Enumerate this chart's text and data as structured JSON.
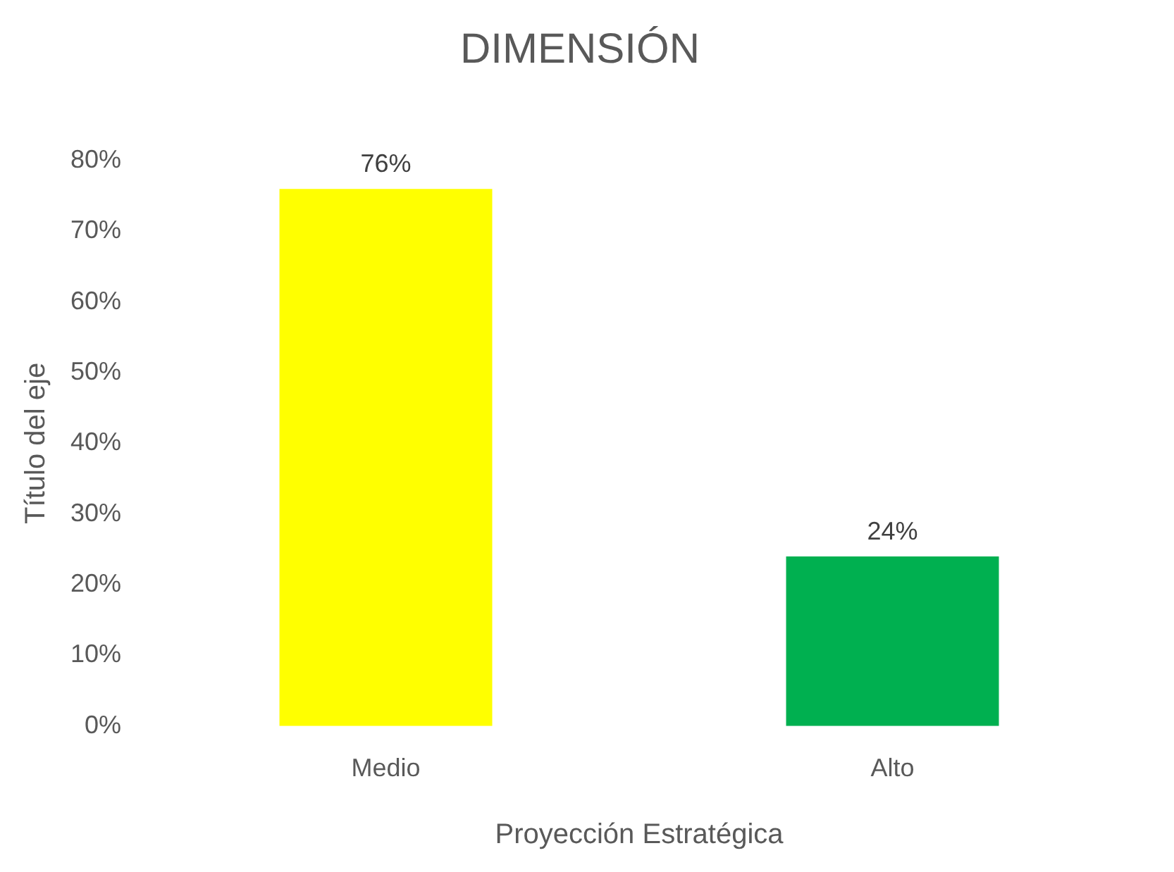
{
  "chart_data": {
    "type": "bar",
    "title": "DIMENSIÓN",
    "xlabel": "Proyección Estratégica",
    "ylabel": "Título del eje",
    "categories": [
      "Medio",
      "Alto"
    ],
    "values": [
      76,
      24
    ],
    "colors": [
      "#ffff00",
      "#00b050"
    ],
    "value_labels": [
      "76%",
      "24%"
    ],
    "ylim": [
      0,
      80
    ],
    "yticks": [
      {
        "value": 0,
        "label": "0%"
      },
      {
        "value": 10,
        "label": "10%"
      },
      {
        "value": 20,
        "label": "20%"
      },
      {
        "value": 30,
        "label": "30%"
      },
      {
        "value": 40,
        "label": "40%"
      },
      {
        "value": 50,
        "label": "50%"
      },
      {
        "value": 60,
        "label": "60%"
      },
      {
        "value": 70,
        "label": "70%"
      },
      {
        "value": 80,
        "label": "80%"
      }
    ],
    "grid": false,
    "legend": false
  }
}
